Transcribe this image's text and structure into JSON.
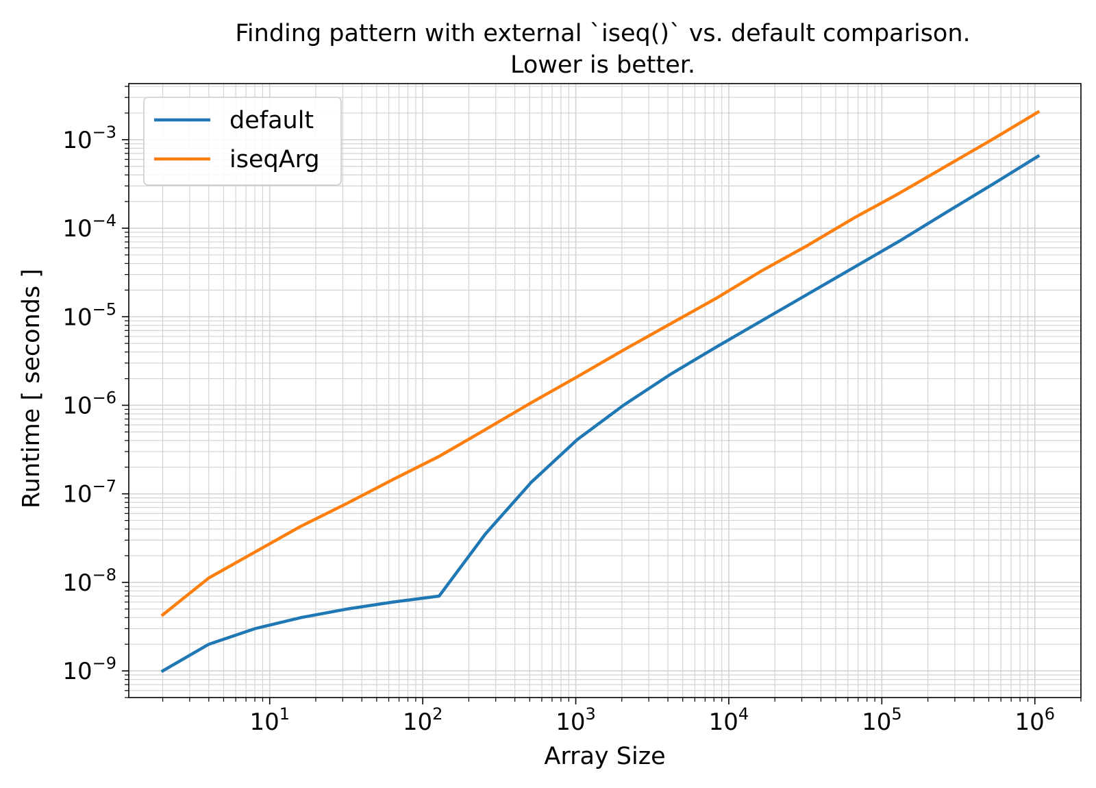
{
  "chart_data": {
    "type": "line",
    "title": [
      "Finding pattern with external `iseq()` vs. default comparison.",
      "Lower is better."
    ],
    "xlabel": "Array Size",
    "ylabel": "Runtime [ seconds ]",
    "xscale": "log",
    "yscale": "log",
    "xlim": [
      1.2,
      2000000
    ],
    "ylim": [
      5e-10,
      0.0043
    ],
    "x_ticks": [
      {
        "base": "10",
        "exp": "1",
        "value": 10
      },
      {
        "base": "10",
        "exp": "2",
        "value": 100
      },
      {
        "base": "10",
        "exp": "3",
        "value": 1000
      },
      {
        "base": "10",
        "exp": "4",
        "value": 10000
      },
      {
        "base": "10",
        "exp": "5",
        "value": 100000
      },
      {
        "base": "10",
        "exp": "6",
        "value": 1000000
      }
    ],
    "y_ticks": [
      {
        "base": "10",
        "exp": "−9",
        "value": 1e-09
      },
      {
        "base": "10",
        "exp": "−8",
        "value": 1e-08
      },
      {
        "base": "10",
        "exp": "−7",
        "value": 1e-07
      },
      {
        "base": "10",
        "exp": "−6",
        "value": 1e-06
      },
      {
        "base": "10",
        "exp": "−5",
        "value": 1e-05
      },
      {
        "base": "10",
        "exp": "−4",
        "value": 0.0001
      },
      {
        "base": "10",
        "exp": "−3",
        "value": 0.001
      }
    ],
    "grid": true,
    "legend_position": "top-left",
    "x": [
      2,
      4,
      8,
      16,
      32,
      64,
      128,
      256,
      512,
      1024,
      2048,
      4096,
      8192,
      16384,
      32768,
      65536,
      131072,
      262144,
      524288,
      1048576
    ],
    "series": [
      {
        "name": "default",
        "color": "#1f77b4",
        "values": [
          1e-09,
          2e-09,
          3e-09,
          4e-09,
          5e-09,
          6e-09,
          7e-09,
          3.5e-08,
          1.35e-07,
          4.1e-07,
          1e-06,
          2.2e-06,
          4.5e-06,
          9e-06,
          1.8e-05,
          3.6e-05,
          7.2e-05,
          0.00015,
          0.00031,
          0.00065
        ]
      },
      {
        "name": "iseqArg",
        "color": "#ff7f0e",
        "values": [
          4.3e-09,
          1.12e-08,
          2.2e-08,
          4.3e-08,
          7.8e-08,
          1.45e-07,
          2.65e-07,
          5.3e-07,
          1.07e-06,
          2.1e-06,
          4.2e-06,
          8.2e-06,
          1.6e-05,
          3.3e-05,
          6.4e-05,
          0.00013,
          0.00025,
          0.0005,
          0.001,
          0.00205
        ]
      }
    ]
  }
}
